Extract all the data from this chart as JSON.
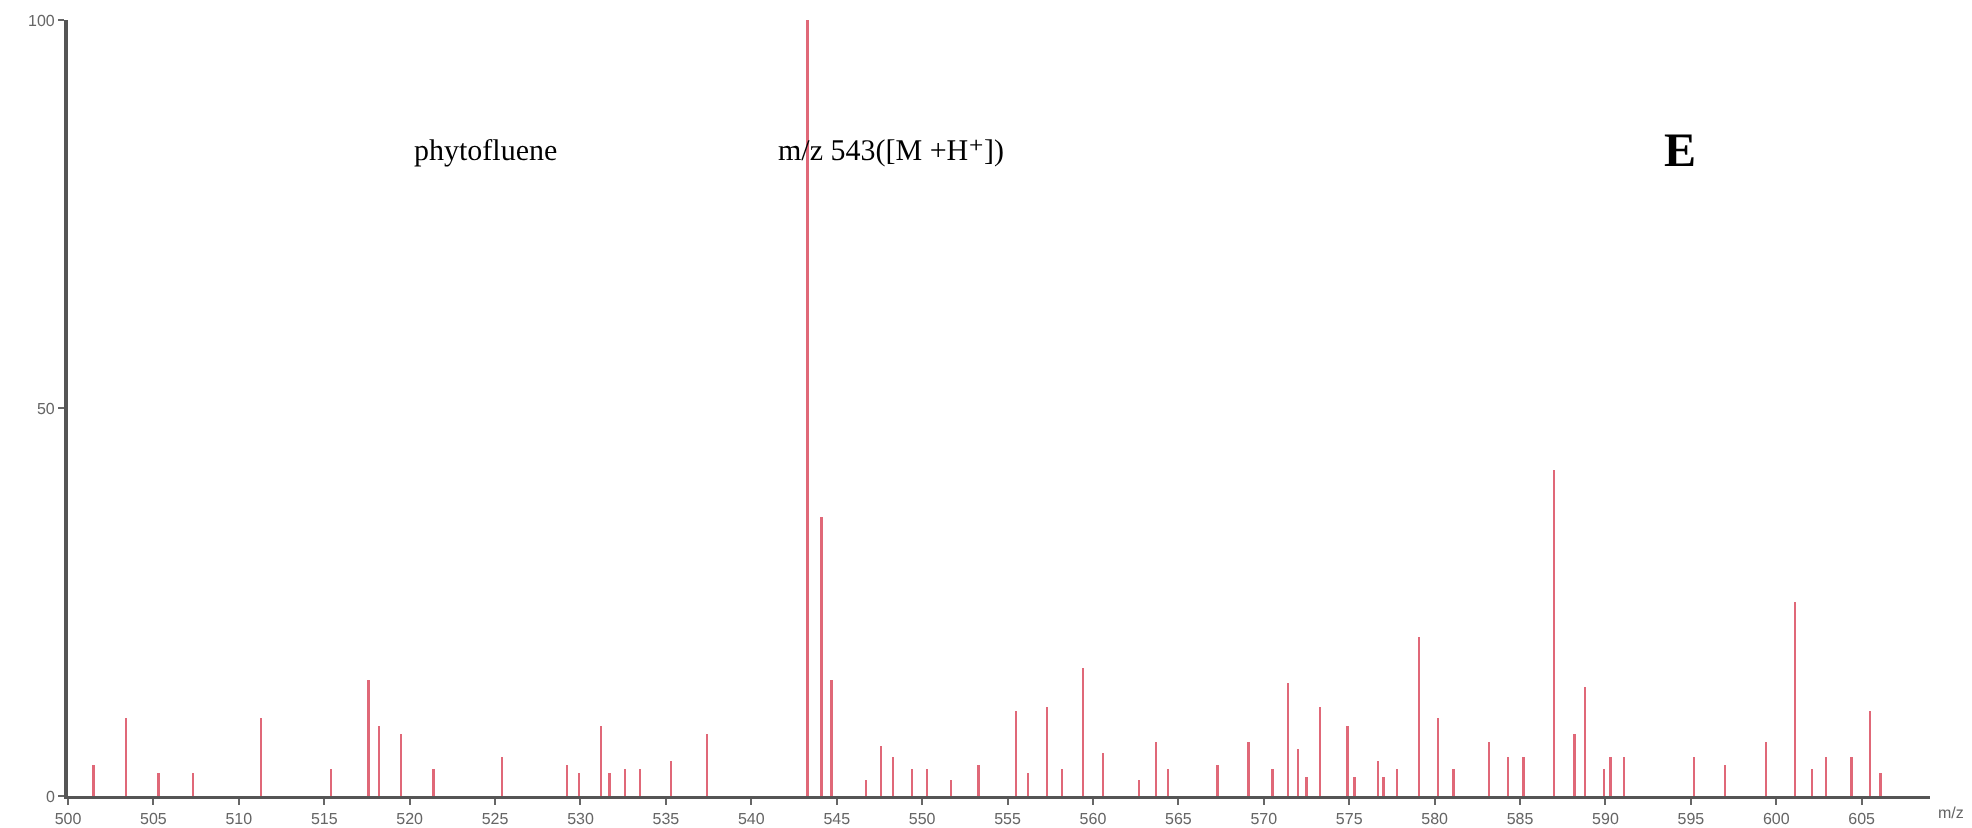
{
  "chart_data": {
    "type": "bar",
    "xlabel": "m/z",
    "annotations": [
      "phytofluene",
      "m/z 543([M +H⁺])",
      "E"
    ],
    "x": [
      501.5,
      503.4,
      505.3,
      507.3,
      511.3,
      515.4,
      517.6,
      518.2,
      519.5,
      521.4,
      525.4,
      529.2,
      529.9,
      531.2,
      531.7,
      532.6,
      533.5,
      535.3,
      537.4,
      543.3,
      544.1,
      544.7,
      546.7,
      547.6,
      548.3,
      549.4,
      550.3,
      551.7,
      553.3,
      555.5,
      556.2,
      557.3,
      558.2,
      559.4,
      560.6,
      562.7,
      563.7,
      564.4,
      567.3,
      569.1,
      570.5,
      571.4,
      572.0,
      572.5,
      573.3,
      574.9,
      575.3,
      576.7,
      577.0,
      577.8,
      579.1,
      580.2,
      581.1,
      583.2,
      584.3,
      585.2,
      587.0,
      588.2,
      588.8,
      589.9,
      590.3,
      591.1,
      595.2,
      597.0,
      599.4,
      601.1,
      602.1,
      602.9,
      604.4,
      605.5,
      606.1
    ],
    "values": [
      4,
      10,
      3,
      3,
      10,
      3.5,
      15,
      9,
      8,
      3.5,
      5,
      4,
      3,
      9,
      3,
      3.5,
      3.5,
      4.5,
      8,
      100,
      36,
      15,
      2,
      6.5,
      5,
      3.5,
      3.5,
      2,
      4,
      11,
      3,
      11.5,
      3.5,
      16.5,
      5.5,
      2,
      7,
      3.5,
      4,
      7,
      3.5,
      14.5,
      6,
      2.5,
      11.5,
      9,
      2.5,
      4.5,
      2.5,
      3.5,
      20.5,
      10,
      3.5,
      7,
      5,
      5,
      42,
      8,
      14,
      3.5,
      5,
      5,
      5,
      4,
      7,
      25,
      3.5,
      5,
      5,
      11,
      3
    ],
    "color": "#e06878",
    "xlim": [
      500,
      609
    ],
    "xticks": [
      500,
      505,
      510,
      515,
      520,
      525,
      530,
      535,
      540,
      545,
      550,
      555,
      560,
      565,
      570,
      575,
      580,
      585,
      590,
      595,
      600,
      605
    ],
    "ylim": [
      0,
      100
    ],
    "yticks": [
      0,
      50,
      100
    ],
    "grid": false
  }
}
